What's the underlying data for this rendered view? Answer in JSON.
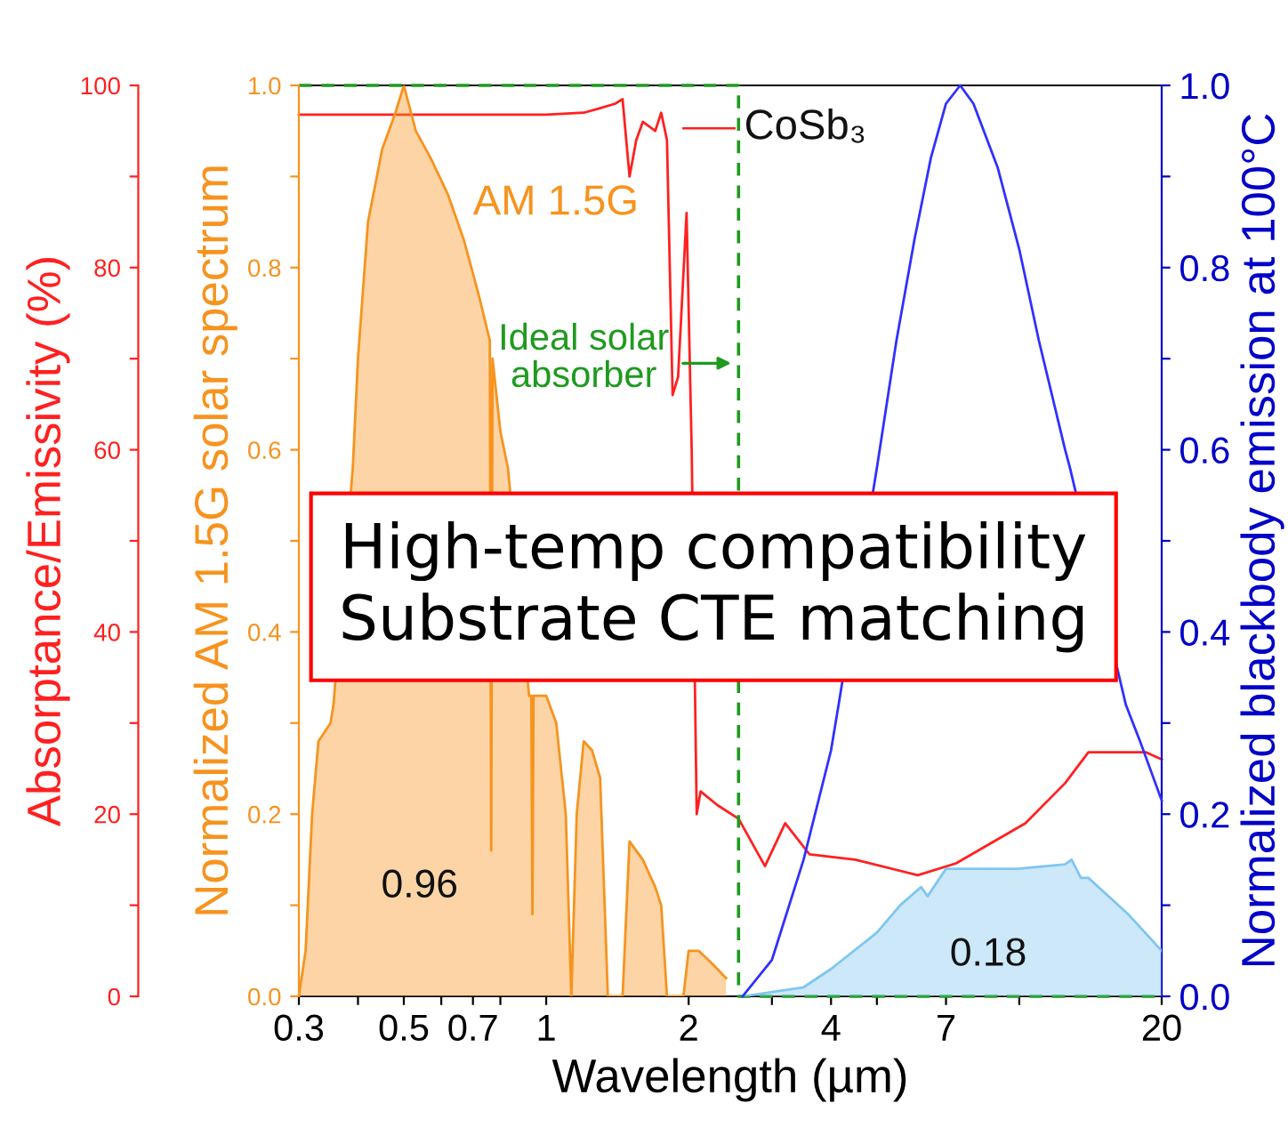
{
  "chart_data": {
    "type": "line",
    "xlabel": "Wavelength (µm)",
    "ylabel": "Absorptance/Emissivity (%)",
    "y2label": "Normalized blackbody emission at 100°C",
    "y3label": "Normalized AM 1.5G solar spectrum",
    "log": "x",
    "xlim": [
      0.3,
      20
    ],
    "xticks": [
      0.3,
      {
        "value": 0.4,
        "label": null
      },
      0.5,
      {
        "value": 0.6,
        "label": null
      },
      0.7,
      {
        "value": 0.8,
        "label": null
      },
      1,
      2,
      {
        "value": 3,
        "label": null
      },
      4,
      {
        "value": 5,
        "label": null
      },
      7,
      {
        "value": 10,
        "label": null
      },
      20
    ],
    "ylim": [
      0,
      100
    ],
    "yticks": [
      0,
      {
        "value": 10,
        "label": null
      },
      20,
      {
        "value": 30,
        "label": null
      },
      40,
      {
        "value": 50,
        "label": null
      },
      60,
      {
        "value": 70,
        "label": null
      },
      80,
      {
        "value": 90,
        "label": null
      },
      100
    ],
    "y2lim": [
      0,
      1
    ],
    "y2ticks": [
      {
        "value": 0,
        "label": "0.0"
      },
      {
        "value": 0.1,
        "label": null
      },
      {
        "value": 0.2,
        "label": "0.2"
      },
      {
        "value": 0.3,
        "label": null
      },
      {
        "value": 0.4,
        "label": "0.4"
      },
      {
        "value": 0.5,
        "label": null
      },
      {
        "value": 0.6,
        "label": "0.6"
      },
      {
        "value": 0.7,
        "label": null
      },
      {
        "value": 0.8,
        "label": "0.8"
      },
      {
        "value": 0.9,
        "label": null
      },
      {
        "value": 1,
        "label": "1.0"
      }
    ],
    "y3lim": [
      0,
      1
    ],
    "y3ticks": [
      {
        "value": 0,
        "label": "0.0"
      },
      {
        "value": 0.1,
        "label": null
      },
      {
        "value": 0.2,
        "label": "0.2"
      },
      {
        "value": 0.3,
        "label": null
      },
      {
        "value": 0.4,
        "label": "0.4"
      },
      {
        "value": 0.5,
        "label": null
      },
      {
        "value": 0.6,
        "label": "0.6"
      },
      {
        "value": 0.7,
        "label": null
      },
      {
        "value": 0.8,
        "label": "0.8"
      },
      {
        "value": 0.9,
        "label": null
      },
      {
        "value": 1,
        "label": "1.0"
      }
    ],
    "grid": false,
    "series": [
      {
        "name": "AM 1.5G",
        "type": "area",
        "axis": "y3",
        "color": "#f7931e",
        "x": [
          0.3,
          0.31,
          0.32,
          0.33,
          0.35,
          0.355,
          0.39,
          0.4,
          0.42,
          0.45,
          0.48,
          0.5,
          0.53,
          0.57,
          0.62,
          0.67,
          0.72,
          0.76,
          0.765,
          0.77,
          0.8,
          0.83,
          0.92,
          0.93,
          0.935,
          0.94,
          0.97,
          1.0,
          1.05,
          1.1,
          1.13,
          1.16,
          1.2,
          1.25,
          1.3,
          1.35,
          1.4,
          1.45,
          1.5,
          1.6,
          1.7,
          1.75,
          1.8,
          1.95,
          2.0,
          2.1,
          2.2,
          2.3,
          2.4
        ],
        "values": [
          0,
          0.05,
          0.2,
          0.28,
          0.3,
          0.32,
          0.58,
          0.7,
          0.85,
          0.93,
          0.97,
          1.0,
          0.95,
          0.92,
          0.88,
          0.83,
          0.77,
          0.72,
          0.16,
          0.7,
          0.62,
          0.58,
          0.33,
          0.33,
          0.09,
          0.33,
          0.33,
          0.33,
          0.3,
          0.2,
          0,
          0.2,
          0.28,
          0.27,
          0.24,
          0,
          0,
          0,
          0.17,
          0.15,
          0.12,
          0.1,
          0,
          0,
          0.05,
          0.05,
          0.04,
          0.03,
          0.02
        ]
      },
      {
        "name": "CoSb₃",
        "axis": "y",
        "color": "#ff2020",
        "x": [
          0.3,
          0.5,
          0.8,
          1.0,
          1.2,
          1.3,
          1.4,
          1.45,
          1.5,
          1.55,
          1.6,
          1.7,
          1.75,
          1.8,
          1.85,
          1.9,
          1.98,
          2.03,
          2.08,
          2.12,
          2.3,
          2.55,
          2.9,
          3.2,
          3.6,
          4.5,
          6.1,
          7.35,
          10.3,
          12.5,
          14,
          18.5,
          20
        ],
        "values": [
          96.8,
          96.8,
          96.8,
          96.8,
          97,
          97.5,
          98,
          98.5,
          90,
          94,
          96,
          95,
          97,
          94,
          66,
          68,
          86,
          60,
          20,
          22.5,
          21,
          19.5,
          14.3,
          19,
          15.6,
          15,
          13.3,
          14.6,
          19,
          23.4,
          26.8,
          26.8,
          26
        ]
      },
      {
        "name": "Ideal solar absorber",
        "axis": "y",
        "color": "#1f9a1f",
        "line_style": "dashed",
        "x": [
          0.3,
          2.55,
          2.55,
          20
        ],
        "values": [
          100,
          100,
          0,
          0
        ]
      },
      {
        "axis": "y2",
        "color": "#3030ff",
        "x": [
          2.6,
          3.0,
          3.5,
          4,
          4.15,
          5,
          5.5,
          6,
          6.5,
          7,
          7.5,
          8,
          9,
          10,
          11,
          12.5,
          12.8,
          16.8,
          18,
          20
        ],
        "values": [
          0,
          0.04,
          0.15,
          0.27,
          0.32,
          0.58,
          0.72,
          0.83,
          0.92,
          0.98,
          1.0,
          0.98,
          0.91,
          0.82,
          0.72,
          0.6,
          0.58,
          0.32,
          0.28,
          0.215
        ]
      },
      {
        "type": "area",
        "axis": "y2",
        "color": "#7fc6f0",
        "x": [
          2.6,
          3.5,
          4,
          5,
          5.6,
          6.2,
          6.4,
          7,
          7.6,
          9.9,
          12.5,
          12.9,
          13.5,
          14,
          17,
          20
        ],
        "values": [
          0,
          0.01,
          0.03,
          0.07,
          0.1,
          0.12,
          0.11,
          0.14,
          0.14,
          0.14,
          0.145,
          0.15,
          0.13,
          0.13,
          0.09,
          0.05
        ]
      }
    ],
    "annotations": [
      "0.96",
      "0.18",
      "High-temp compatibility\nSubstrate CTE matching"
    ]
  }
}
